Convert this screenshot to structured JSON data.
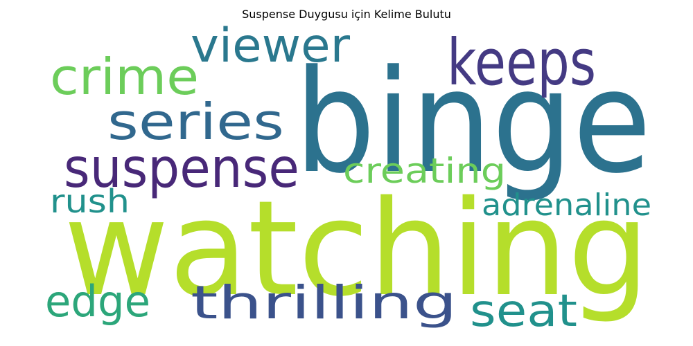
{
  "chart_data": {
    "type": "wordcloud",
    "title": "Suspense Duygusu için Kelime Bulutu",
    "words": [
      {
        "text": "binge",
        "color": "#2c728e"
      },
      {
        "text": "watching",
        "color": "#b5de2b"
      },
      {
        "text": "keeps",
        "color": "#443a83"
      },
      {
        "text": "viewer",
        "color": "#2a788e"
      },
      {
        "text": "crime",
        "color": "#6ccd5a"
      },
      {
        "text": "series",
        "color": "#31688e"
      },
      {
        "text": "suspense",
        "color": "#482878"
      },
      {
        "text": "creating",
        "color": "#6ccd5a"
      },
      {
        "text": "rush",
        "color": "#21918c"
      },
      {
        "text": "adrenaline",
        "color": "#21918c"
      },
      {
        "text": "edge",
        "color": "#2ca67a"
      },
      {
        "text": "thrilling",
        "color": "#3b528b"
      },
      {
        "text": "seat",
        "color": "#21918c"
      }
    ]
  }
}
